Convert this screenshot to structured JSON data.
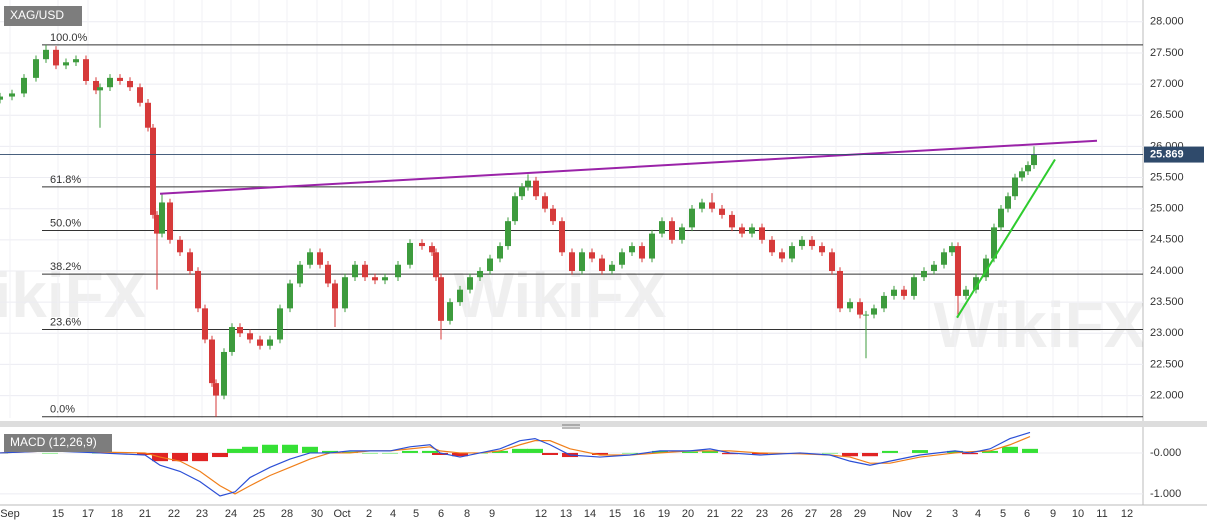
{
  "chart_data": [
    {
      "type": "candlestick",
      "title": "XAG/USD",
      "watermark": "WikiFX",
      "grid": true,
      "up_color": "#3d9b3d",
      "down_color": "#d63a3a",
      "last_price": 25.869,
      "last_price_color": "#2f4a6b",
      "xlim": [
        0,
        45.72
      ],
      "ylim": [
        21.64,
        28.35
      ],
      "yticks": [
        {
          "value": 28,
          "label": "28.000"
        },
        {
          "value": 27.5,
          "label": "27.500"
        },
        {
          "value": 27,
          "label": "27.000"
        },
        {
          "value": 26.5,
          "label": "26.500"
        },
        {
          "value": 26,
          "label": "26.000"
        },
        {
          "value": 25.5,
          "label": "25.500"
        },
        {
          "value": 25,
          "label": "25.000"
        },
        {
          "value": 24.5,
          "label": "24.500"
        },
        {
          "value": 24,
          "label": "24.000"
        },
        {
          "value": 23.5,
          "label": "23.500"
        },
        {
          "value": 23,
          "label": "23.000"
        },
        {
          "value": 22.5,
          "label": "22.500"
        },
        {
          "value": 22,
          "label": "22.000"
        }
      ],
      "xticks": [
        {
          "value": 0.4,
          "label": "Sep"
        },
        {
          "value": 2.32,
          "label": "15"
        },
        {
          "value": 3.52,
          "label": "17"
        },
        {
          "value": 4.68,
          "label": "18"
        },
        {
          "value": 5.8,
          "label": "21"
        },
        {
          "value": 6.96,
          "label": "22"
        },
        {
          "value": 8.08,
          "label": "23"
        },
        {
          "value": 9.24,
          "label": "24"
        },
        {
          "value": 10.36,
          "label": "25"
        },
        {
          "value": 11.48,
          "label": "28"
        },
        {
          "value": 12.68,
          "label": "30"
        },
        {
          "value": 13.68,
          "label": "Oct"
        },
        {
          "value": 14.76,
          "label": "2"
        },
        {
          "value": 15.72,
          "label": "4"
        },
        {
          "value": 16.64,
          "label": "5"
        },
        {
          "value": 17.64,
          "label": "6"
        },
        {
          "value": 18.68,
          "label": "8"
        },
        {
          "value": 19.68,
          "label": "9"
        },
        {
          "value": 21.64,
          "label": "12"
        },
        {
          "value": 22.64,
          "label": "13"
        },
        {
          "value": 23.6,
          "label": "14"
        },
        {
          "value": 24.6,
          "label": "15"
        },
        {
          "value": 25.56,
          "label": "16"
        },
        {
          "value": 26.56,
          "label": "19"
        },
        {
          "value": 27.52,
          "label": "20"
        },
        {
          "value": 28.52,
          "label": "21"
        },
        {
          "value": 29.48,
          "label": "22"
        },
        {
          "value": 30.48,
          "label": "23"
        },
        {
          "value": 31.48,
          "label": "26"
        },
        {
          "value": 32.44,
          "label": "27"
        },
        {
          "value": 33.44,
          "label": "28"
        },
        {
          "value": 34.4,
          "label": "29"
        },
        {
          "value": 36.08,
          "label": "Nov"
        },
        {
          "value": 37.16,
          "label": "2"
        },
        {
          "value": 38.2,
          "label": "3"
        },
        {
          "value": 39.12,
          "label": "4"
        },
        {
          "value": 40.12,
          "label": "5"
        },
        {
          "value": 41.08,
          "label": "6"
        },
        {
          "value": 42.12,
          "label": "9"
        },
        {
          "value": 43.12,
          "label": "10"
        },
        {
          "value": 44.08,
          "label": "11"
        },
        {
          "value": 45.08,
          "label": "12"
        }
      ],
      "fib_levels": [
        {
          "label": "100.0%",
          "value": 27.63
        },
        {
          "label": "61.8%",
          "value": 25.35
        },
        {
          "label": "50.0%",
          "value": 24.65
        },
        {
          "label": "38.2%",
          "value": 23.95
        },
        {
          "label": "23.6%",
          "value": 23.06
        },
        {
          "label": "0.0%",
          "value": 21.66
        }
      ],
      "trendlines": [
        {
          "color": "#9a23a8",
          "x": [
            6.4,
            43.88
          ],
          "values": [
            25.24,
            26.09
          ]
        },
        {
          "color": "#2ecc2e",
          "x": [
            38.28,
            42.2
          ],
          "values": [
            23.25,
            25.79
          ]
        }
      ],
      "x": [
        0,
        0.48,
        0.96,
        1.44,
        1.84,
        2.24,
        2.64,
        3.04,
        3.44,
        3.84,
        4,
        4.4,
        4.8,
        5.2,
        5.6,
        5.92,
        6.12,
        6.28,
        6.48,
        6.8,
        7.2,
        7.6,
        7.92,
        8.2,
        8.48,
        8.64,
        8.96,
        9.28,
        9.6,
        10,
        10.4,
        10.8,
        11.2,
        11.6,
        12,
        12.4,
        12.8,
        13.12,
        13.4,
        13.8,
        14.2,
        14.6,
        15,
        15.4,
        15.92,
        16.4,
        16.88,
        17.28,
        17.44,
        17.64,
        18,
        18.4,
        18.8,
        19.2,
        19.6,
        20,
        20.32,
        20.6,
        20.88,
        21.12,
        21.44,
        21.8,
        22.12,
        22.48,
        22.88,
        23.28,
        23.68,
        24.08,
        24.48,
        24.88,
        25.28,
        25.68,
        26.08,
        26.48,
        26.88,
        27.28,
        27.68,
        28.08,
        28.48,
        28.88,
        29.28,
        29.68,
        30.08,
        30.48,
        30.88,
        31.28,
        31.68,
        32.08,
        32.48,
        32.88,
        33.28,
        33.6,
        34,
        34.4,
        34.64,
        34.96,
        35.36,
        35.76,
        36.16,
        36.56,
        36.96,
        37.36,
        37.76,
        38.08,
        38.32,
        38.64,
        39.04,
        39.44,
        39.76,
        40.04,
        40.32,
        40.6,
        40.88,
        41.12,
        41.36
      ],
      "open": [
        26.75,
        26.8,
        26.85,
        27.1,
        27.4,
        27.55,
        27.3,
        27.35,
        27.4,
        27.05,
        26.9,
        26.95,
        27.1,
        27.05,
        26.95,
        26.7,
        26.3,
        24.9,
        24.6,
        25.1,
        24.5,
        24.3,
        24,
        23.4,
        22.9,
        22.2,
        22,
        22.7,
        23.1,
        23,
        22.9,
        22.8,
        22.9,
        23.4,
        23.8,
        24.1,
        24.3,
        24.1,
        23.8,
        23.4,
        23.9,
        24.1,
        23.9,
        23.85,
        23.9,
        24.1,
        24.45,
        24.4,
        24.3,
        23.9,
        23.2,
        23.5,
        23.7,
        23.9,
        24,
        24.2,
        24.4,
        24.8,
        25.2,
        25.35,
        25.45,
        25.2,
        25,
        24.8,
        24.3,
        24,
        24.3,
        24.2,
        24,
        24.1,
        24.3,
        24.4,
        24.2,
        24.6,
        24.8,
        24.5,
        24.7,
        25,
        25.1,
        25,
        24.9,
        24.7,
        24.6,
        24.7,
        24.5,
        24.3,
        24.2,
        24.4,
        24.5,
        24.4,
        24.3,
        24,
        23.4,
        23.5,
        23.3,
        23.3,
        23.4,
        23.6,
        23.7,
        23.6,
        23.9,
        24,
        24.1,
        24.3,
        24.4,
        23.6,
        23.7,
        23.9,
        24.2,
        24.7,
        25,
        25.2,
        25.5,
        25.6,
        25.7
      ],
      "high": [
        26.86,
        26.91,
        27.16,
        27.46,
        27.63,
        27.61,
        27.41,
        27.46,
        27.46,
        27.11,
        27.01,
        27.16,
        27.16,
        27.11,
        27.01,
        26.76,
        26.36,
        24.96,
        25.25,
        25.16,
        24.56,
        24.36,
        24.06,
        23.46,
        22.96,
        22.26,
        22.76,
        23.16,
        23.16,
        23.06,
        22.96,
        22.96,
        23.46,
        23.86,
        24.16,
        24.36,
        24.36,
        24.16,
        23.86,
        23.96,
        24.16,
        24.16,
        23.96,
        23.96,
        24.16,
        24.51,
        24.51,
        24.46,
        24.36,
        23.96,
        23.56,
        23.76,
        23.96,
        24.06,
        24.26,
        24.46,
        24.86,
        25.26,
        25.41,
        25.55,
        25.51,
        25.26,
        25.06,
        24.86,
        24.36,
        24.36,
        24.36,
        24.26,
        24.16,
        24.36,
        24.46,
        24.46,
        24.66,
        24.86,
        24.86,
        24.76,
        25.06,
        25.16,
        25.25,
        25.06,
        24.96,
        24.76,
        24.76,
        24.76,
        24.56,
        24.36,
        24.46,
        24.56,
        24.56,
        24.46,
        24.36,
        24.06,
        23.56,
        23.56,
        23.36,
        23.46,
        23.66,
        23.76,
        23.76,
        23.96,
        24.06,
        24.16,
        24.36,
        24.46,
        24.46,
        23.76,
        23.96,
        24.26,
        24.76,
        25.06,
        25.26,
        25.56,
        25.66,
        25.76,
        26
      ],
      "low": [
        26.69,
        26.74,
        26.79,
        27.04,
        27.34,
        27.24,
        27.24,
        27.29,
        26.99,
        26.84,
        26.3,
        26.89,
        26.99,
        26.89,
        26.64,
        26.24,
        24.84,
        23.7,
        24.54,
        24.44,
        24.24,
        23.94,
        23.34,
        22.84,
        22.14,
        21.66,
        21.94,
        22.64,
        22.94,
        22.84,
        22.74,
        22.74,
        22.84,
        23.34,
        23.74,
        24.04,
        24.04,
        23.74,
        23.1,
        23.34,
        23.84,
        23.84,
        23.79,
        23.79,
        23.84,
        24.04,
        24.34,
        24.24,
        23.84,
        22.9,
        23.14,
        23.44,
        23.64,
        23.84,
        23.94,
        24.14,
        24.34,
        24.74,
        25.14,
        25.29,
        25.14,
        24.94,
        24.74,
        24.24,
        23.94,
        23.94,
        24.14,
        23.94,
        23.94,
        24.04,
        24.24,
        24.14,
        24.14,
        24.54,
        24.44,
        24.44,
        24.64,
        24.94,
        24.94,
        24.84,
        24.64,
        24.54,
        24.54,
        24.44,
        24.24,
        24.14,
        24.14,
        24.34,
        24.34,
        24.24,
        23.94,
        23.34,
        23.34,
        23.24,
        22.6,
        23.24,
        23.34,
        23.54,
        23.54,
        23.54,
        23.84,
        23.94,
        24.04,
        24.24,
        23.25,
        23.54,
        23.64,
        23.84,
        24.14,
        24.64,
        24.94,
        25.14,
        25.44,
        25.54,
        25.64
      ],
      "close": [
        26.8,
        26.85,
        27.1,
        27.4,
        27.55,
        27.3,
        27.35,
        27.4,
        27.05,
        26.9,
        26.95,
        27.1,
        27.05,
        26.95,
        26.7,
        26.3,
        24.9,
        24.6,
        25.1,
        24.5,
        24.3,
        24,
        23.4,
        22.9,
        22.2,
        22,
        22.7,
        23.1,
        23,
        22.9,
        22.8,
        22.9,
        23.4,
        23.8,
        24.1,
        24.3,
        24.1,
        23.8,
        23.4,
        23.9,
        24.1,
        23.9,
        23.85,
        23.9,
        24.1,
        24.45,
        24.4,
        24.3,
        23.9,
        23.2,
        23.5,
        23.7,
        23.9,
        24,
        24.2,
        24.4,
        24.8,
        25.2,
        25.35,
        25.45,
        25.2,
        25,
        24.8,
        24.3,
        24,
        24.3,
        24.2,
        24,
        24.1,
        24.3,
        24.4,
        24.2,
        24.6,
        24.8,
        24.5,
        24.7,
        25,
        25.1,
        25,
        24.9,
        24.7,
        24.6,
        24.7,
        24.5,
        24.3,
        24.2,
        24.4,
        24.5,
        24.4,
        24.3,
        24,
        23.4,
        23.5,
        23.3,
        23.3,
        23.4,
        23.6,
        23.7,
        23.6,
        23.9,
        24,
        24.1,
        24.3,
        24.4,
        23.6,
        23.7,
        23.9,
        24.2,
        24.7,
        25,
        25.2,
        25.5,
        25.6,
        25.7,
        25.87
      ]
    },
    {
      "type": "macd",
      "title": "MACD (12,26,9)",
      "macd_color": "#2b4fd6",
      "signal_color": "#f07f1a",
      "up_color": "#35e035",
      "down_color": "#e02424",
      "ylim": [
        -1.27,
        0.56
      ],
      "yticks": [
        {
          "value": 0,
          "label": "-0.000"
        },
        {
          "value": -1,
          "label": "-1.000"
        }
      ],
      "x": [
        0,
        2,
        4,
        5.8,
        6.4,
        7.2,
        8,
        8.8,
        9.4,
        10,
        10.8,
        11.6,
        12.4,
        13.2,
        14,
        14.8,
        15.6,
        16.4,
        17.2,
        17.6,
        18.4,
        19.2,
        20,
        20.8,
        21.4,
        22,
        22.8,
        24,
        25.2,
        26.4,
        27.6,
        28.4,
        29.2,
        30.4,
        32,
        33.2,
        34,
        34.8,
        35.6,
        36.8,
        38.2,
        38.8,
        39.6,
        40.4,
        41.2
      ],
      "macd": [
        0,
        0.05,
        0,
        -0.05,
        -0.3,
        -0.45,
        -0.7,
        -1.05,
        -0.95,
        -0.6,
        -0.35,
        -0.15,
        0,
        0,
        0.05,
        0.05,
        0.05,
        0.15,
        0.2,
        0,
        -0.1,
        0,
        0.1,
        0.3,
        0.35,
        0.2,
        -0.05,
        -0.1,
        -0.05,
        0.05,
        0.05,
        0.1,
        0,
        -0.05,
        0,
        -0.05,
        -0.2,
        -0.3,
        -0.2,
        -0.05,
        0.05,
        0,
        0.1,
        0.35,
        0.5
      ],
      "signal": [
        0,
        0.05,
        0.02,
        0,
        -0.1,
        -0.2,
        -0.45,
        -0.8,
        -1.0,
        -0.8,
        -0.55,
        -0.35,
        -0.15,
        0,
        0,
        0.05,
        0.05,
        0.1,
        0.15,
        0.05,
        0,
        0,
        0.05,
        0.2,
        0.3,
        0.3,
        0.1,
        -0.05,
        -0.05,
        0,
        0.05,
        0.05,
        0.05,
        0,
        -0.02,
        -0.05,
        -0.1,
        -0.25,
        -0.25,
        -0.1,
        0,
        0.03,
        0.05,
        0.2,
        0.4
      ],
      "histogram": [
        0,
        0,
        0,
        -0.05,
        -0.2,
        -0.2,
        -0.2,
        -0.1,
        0.1,
        0.15,
        0.2,
        0.2,
        0.15,
        0.05,
        0.03,
        0,
        0,
        0.05,
        0.05,
        -0.05,
        -0.08,
        0,
        0.05,
        0.1,
        0.1,
        -0.05,
        -0.1,
        -0.05,
        0,
        0.05,
        0.03,
        0.05,
        -0.03,
        -0.03,
        0,
        0,
        -0.08,
        -0.08,
        0.05,
        0.07,
        0.05,
        -0.03,
        0.05,
        0.15,
        0.1
      ]
    }
  ]
}
